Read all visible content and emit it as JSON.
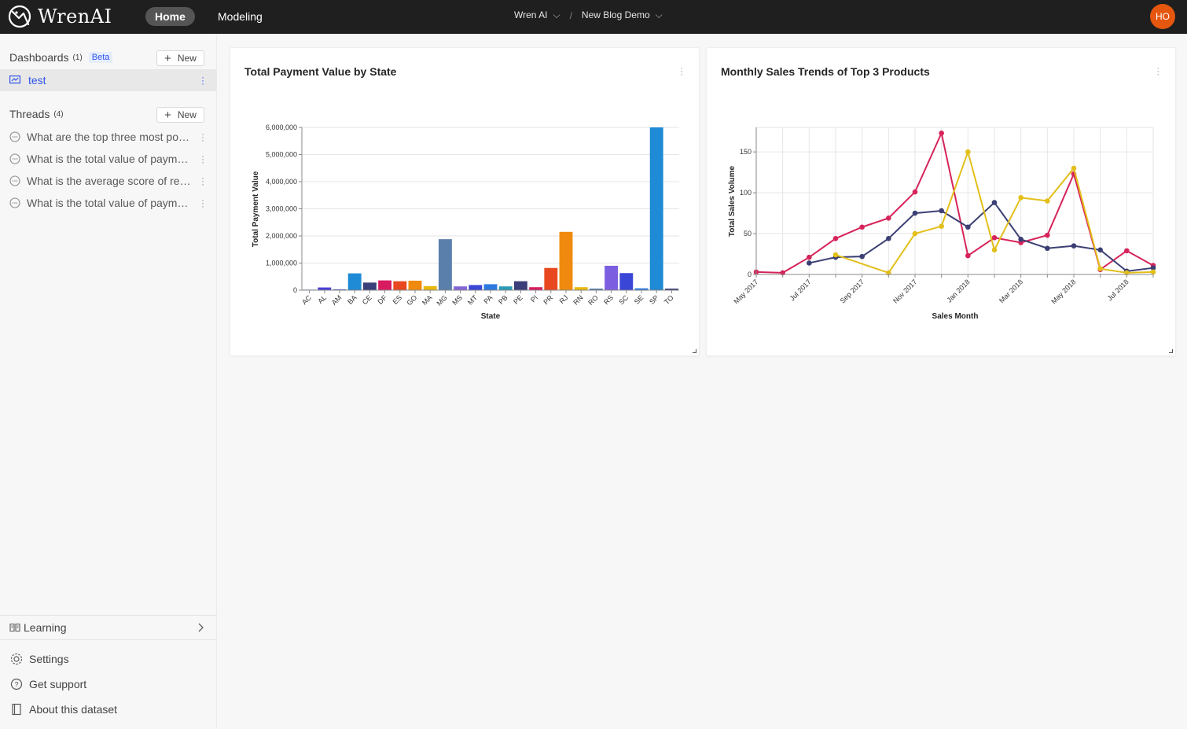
{
  "app": {
    "logo_text": "WrenAI",
    "nav": {
      "home": "Home",
      "modeling": "Modeling"
    },
    "breadcrumb": {
      "project": "Wren AI",
      "separator": "/",
      "dashboard": "New Blog Demo"
    },
    "avatar_initials": "HO"
  },
  "sidebar": {
    "dashboards": {
      "label": "Dashboards",
      "count": "(1)",
      "badge": "Beta",
      "new_label": "New",
      "items": [
        {
          "label": "test"
        }
      ]
    },
    "threads": {
      "label": "Threads",
      "count": "(4)",
      "new_label": "New",
      "items": [
        {
          "label": "What are the top three most popular products?"
        },
        {
          "label": "What is the total value of payments by state?"
        },
        {
          "label": "What is the average score of reviews?"
        },
        {
          "label": "What is the total value of payments by month?"
        }
      ]
    },
    "learning": "Learning",
    "footer": {
      "settings": "Settings",
      "support": "Get support",
      "about": "About this dataset"
    }
  },
  "colors": {
    "topbar": "#1f1f1f",
    "accent": "#2f54eb",
    "avatar": "#e5560f"
  },
  "chart_data": [
    {
      "type": "bar",
      "title": "Total Payment Value by State",
      "xlabel": "State",
      "ylabel": "Total Payment Value",
      "ylim": [
        0,
        6000000
      ],
      "yticks": [
        "0",
        "1,000,000",
        "2,000,000",
        "3,000,000",
        "4,000,000",
        "5,000,000",
        "6,000,000"
      ],
      "categories": [
        "AC",
        "AL",
        "AM",
        "BA",
        "CE",
        "DF",
        "ES",
        "GO",
        "MA",
        "MG",
        "MS",
        "MT",
        "PA",
        "PB",
        "PE",
        "PI",
        "PR",
        "RJ",
        "RN",
        "RO",
        "RS",
        "SC",
        "SE",
        "SP",
        "TO"
      ],
      "values": [
        20000,
        100000,
        30000,
        620000,
        280000,
        360000,
        330000,
        350000,
        150000,
        1880000,
        140000,
        190000,
        220000,
        140000,
        330000,
        110000,
        820000,
        2150000,
        110000,
        60000,
        900000,
        630000,
        70000,
        6000000,
        60000
      ],
      "colors": [
        "#4e79a7",
        "#4a3fd6",
        "#2e4bbd",
        "#1f8ad6",
        "#3a3f7a",
        "#d81b60",
        "#e8481f",
        "#f08a0e",
        "#e8b90c",
        "#5a7fab",
        "#8466d8",
        "#3a46d6",
        "#2c79e0",
        "#2a9bb8",
        "#3a3f7a",
        "#d81b60",
        "#e8481f",
        "#f08a0e",
        "#e8b90c",
        "#5a7fab",
        "#7b5fe0",
        "#3a46d6",
        "#2c79e0",
        "#1f8ad6",
        "#3a3f7a"
      ],
      "grid": true
    },
    {
      "type": "line",
      "title": "Monthly Sales Trends of Top 3 Products",
      "xlabel": "Sales Month",
      "ylabel": "Total Sales Volume",
      "ylim": [
        0,
        180
      ],
      "yticks": [
        0,
        50,
        100,
        150
      ],
      "x": [
        "May 2017",
        "Jun 2017",
        "Jul 2017",
        "Aug 2017",
        "Sep 2017",
        "Oct 2017",
        "Nov 2017",
        "Dec 2017",
        "Jan 2018",
        "Feb 2018",
        "Mar 2018",
        "Apr 2018",
        "May 2018",
        "Jun 2018",
        "Jul 2018",
        "Aug 2018"
      ],
      "xtick_labels": [
        "May 2017",
        "Jul 2017",
        "Sep 2017",
        "Nov 2017",
        "Jan 2018",
        "Mar 2018",
        "May 2018",
        "Jul 2018"
      ],
      "grid": true,
      "series": [
        {
          "color": "#d6245a",
          "values": [
            3,
            2,
            21,
            44,
            58,
            69,
            101,
            173,
            23,
            45,
            39,
            48,
            123,
            6,
            29,
            11
          ]
        },
        {
          "color": "#3b3f73",
          "values": [
            null,
            null,
            14,
            21,
            22,
            44,
            75,
            78,
            58,
            88,
            43,
            32,
            35,
            30,
            4,
            8
          ]
        },
        {
          "color": "#e3bf1a",
          "values": [
            null,
            null,
            null,
            24,
            null,
            2,
            50,
            59,
            150,
            30,
            94,
            90,
            130,
            7,
            2,
            3
          ]
        }
      ]
    }
  ]
}
